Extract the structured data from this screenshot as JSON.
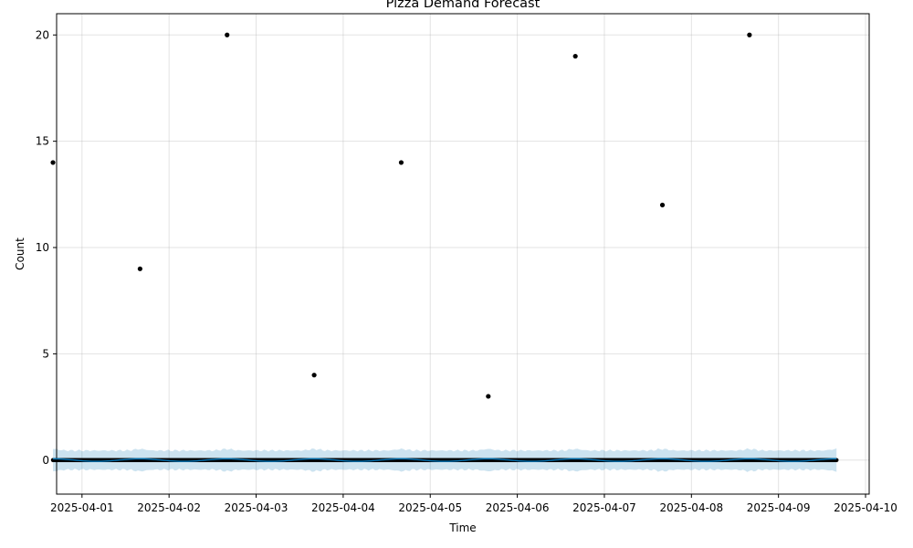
{
  "chart_data": {
    "type": "scatter",
    "title": "Pizza Demand Forecast",
    "xlabel": "Time",
    "ylabel": "Count",
    "x_axis_type": "date",
    "xlim": [
      "2025-03-31T17:00",
      "2025-04-10T01:00"
    ],
    "ylim": [
      -1.6,
      21.0
    ],
    "x_ticks": [
      "2025-04-01",
      "2025-04-02",
      "2025-04-03",
      "2025-04-04",
      "2025-04-05",
      "2025-04-06",
      "2025-04-07",
      "2025-04-08",
      "2025-04-09",
      "2025-04-10"
    ],
    "y_ticks": [
      0,
      5,
      10,
      15,
      20
    ],
    "grid": true,
    "legend": "none",
    "colors": {
      "observed": "#000000",
      "forecast_line": "#0072B2",
      "uncertainty_band": "#0072B2"
    },
    "series": [
      {
        "kind": "observed_points",
        "x": [
          "2025-03-31T16:00",
          "2025-04-01T16:00",
          "2025-04-02T16:00",
          "2025-04-03T16:00",
          "2025-04-04T16:00",
          "2025-04-05T16:00",
          "2025-04-06T16:00",
          "2025-04-07T16:00",
          "2025-04-08T16:00"
        ],
        "y": [
          14,
          9,
          20,
          4,
          14,
          3,
          19,
          12,
          20
        ]
      },
      {
        "kind": "observed_zero_range",
        "x_start": "2025-03-31T16:00",
        "x_end": "2025-04-09T16:00",
        "y": 0
      },
      {
        "kind": "forecast",
        "x_start": "2025-03-31T16:00",
        "x_end": "2025-04-09T16:00",
        "y": 0.0,
        "lower": -0.45,
        "upper": 0.45
      }
    ]
  }
}
